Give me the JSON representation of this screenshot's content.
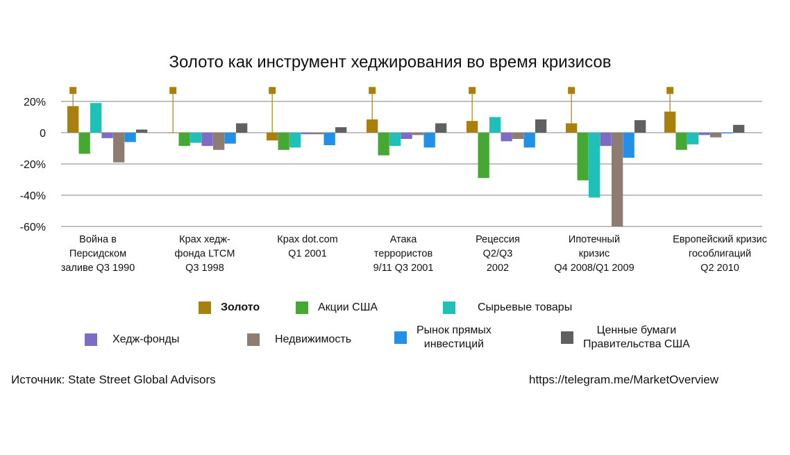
{
  "chart_data": {
    "type": "bar",
    "title": "Золото как инструмент хеджирования во время кризисов",
    "ylim": [
      -60,
      20
    ],
    "yticks": [
      {
        "value": 20,
        "label": "20%"
      },
      {
        "value": 0,
        "label": "0"
      },
      {
        "value": -20,
        "label": "-20%"
      },
      {
        "value": -40,
        "label": "-40%"
      },
      {
        "value": -60,
        "label": "-60%"
      }
    ],
    "grid": true,
    "legend_position": "bottom",
    "categories": [
      [
        "Война в",
        "Персидском",
        "заливе Q3 1990"
      ],
      [
        "Крах хедж-",
        "фонда LTCM",
        "Q3 1998"
      ],
      [
        "Крах dot.com",
        "Q1 2001"
      ],
      [
        "Атака",
        "террористов",
        "9/11 Q3 2001"
      ],
      [
        "Рецессия",
        "Q2/Q3",
        "2002"
      ],
      [
        "Ипотечный",
        "кризис",
        "Q4 2008/Q1 2009"
      ],
      [
        "Европейский кризис",
        "гособлигаций",
        "Q2 2010"
      ]
    ],
    "series": [
      {
        "name": "Золото",
        "color": "#a8800e",
        "values": [
          17,
          0,
          -5,
          8.5,
          7.5,
          6,
          13.5
        ]
      },
      {
        "name": "Акции США",
        "color": "#44a832",
        "values": [
          -13.5,
          -8.5,
          -11,
          -14.5,
          -29,
          -30.5,
          -11
        ]
      },
      {
        "name": "Сырьевые товары",
        "color": "#1ec0b8",
        "values": [
          19,
          -6.5,
          -9.5,
          -8.5,
          10,
          -41.5,
          -7.5
        ]
      },
      {
        "name": "Хедж-фонды",
        "color": "#7e6bc6",
        "values": [
          -3.5,
          -8.5,
          -1,
          -4,
          -5.5,
          -8.5,
          -1.5
        ]
      },
      {
        "name": "Недвижимость",
        "color": "#8e7c70",
        "values": [
          -19,
          -11,
          -1,
          -1.5,
          -4,
          -60,
          -3
        ]
      },
      {
        "name": "Рынок прямых инвестиций",
        "color": "#2390e8",
        "values": [
          -6,
          -7,
          -8,
          -9.5,
          -9.5,
          -16,
          -0.5
        ]
      },
      {
        "name": "Ценные бумаги Правительства США",
        "color": "#606060",
        "values": [
          2,
          6,
          3.5,
          6,
          8.5,
          8,
          5
        ]
      }
    ],
    "gold_markers": [
      27,
      27,
      27,
      27,
      27,
      27,
      27
    ]
  },
  "legend": {
    "row1": [
      {
        "label": "Золото",
        "color": "#a8800e",
        "bold": true
      },
      {
        "label": "Акции США",
        "color": "#44a832"
      },
      {
        "label": "Сырьевые товары",
        "color": "#1ec0b8"
      }
    ],
    "row2": [
      {
        "label": "Хедж-фонды",
        "color": "#7e6bc6"
      },
      {
        "label": "Недвижимость",
        "color": "#8e7c70"
      },
      {
        "lines": [
          "Рынок прямых",
          "инвестиций"
        ],
        "color": "#2390e8"
      },
      {
        "lines": [
          "Ценные бумаги",
          "Правительства США"
        ],
        "color": "#606060"
      }
    ]
  },
  "footer": {
    "source": "Источник: State Street Global Advisors",
    "link": "https://telegram.me/MarketOverview"
  }
}
